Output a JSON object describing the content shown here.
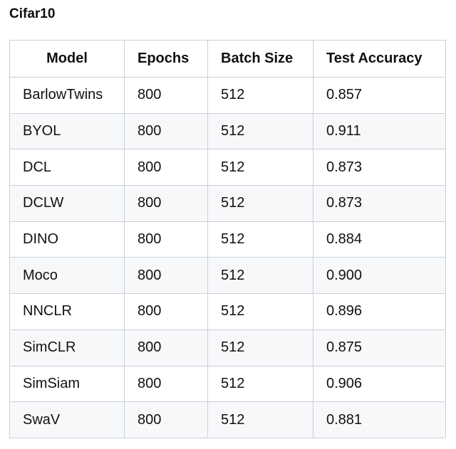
{
  "title": "Cifar10",
  "table": {
    "headers": [
      "Model",
      "Epochs",
      "Batch Size",
      "Test Accuracy"
    ],
    "rows": [
      [
        "BarlowTwins",
        "800",
        "512",
        "0.857"
      ],
      [
        "BYOL",
        "800",
        "512",
        "0.911"
      ],
      [
        "DCL",
        "800",
        "512",
        "0.873"
      ],
      [
        "DCLW",
        "800",
        "512",
        "0.873"
      ],
      [
        "DINO",
        "800",
        "512",
        "0.884"
      ],
      [
        "Moco",
        "800",
        "512",
        "0.900"
      ],
      [
        "NNCLR",
        "800",
        "512",
        "0.896"
      ],
      [
        "SimCLR",
        "800",
        "512",
        "0.875"
      ],
      [
        "SimSiam",
        "800",
        "512",
        "0.906"
      ],
      [
        "SwaV",
        "800",
        "512",
        "0.881"
      ]
    ]
  }
}
